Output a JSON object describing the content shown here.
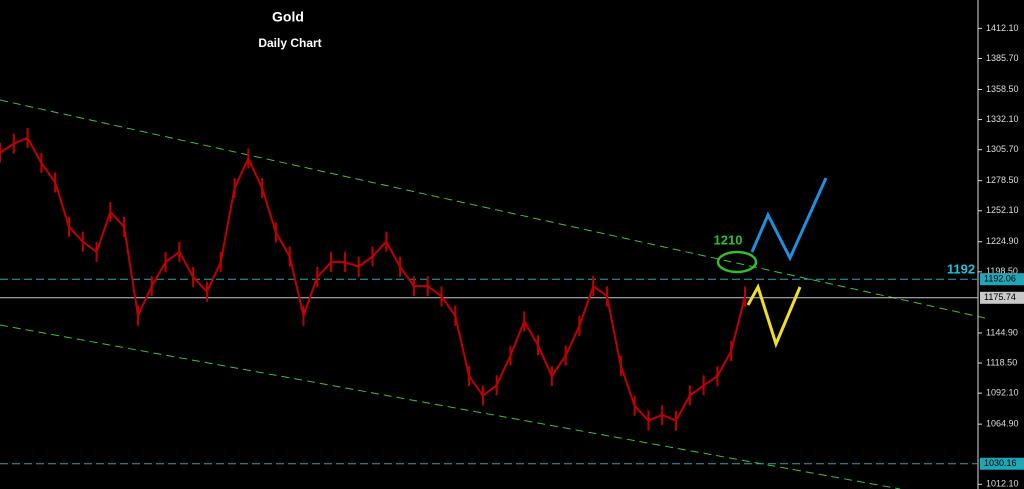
{
  "chart_data": {
    "type": "line",
    "title": "Gold",
    "subtitle": "Daily Chart",
    "series": [
      {
        "name": "Gold",
        "color": "#c00000",
        "values": [
          1303,
          1311,
          1316,
          1294,
          1277,
          1238,
          1225,
          1216,
          1251,
          1238,
          1160,
          1186,
          1207,
          1216,
          1194,
          1181,
          1207,
          1272,
          1298,
          1272,
          1233,
          1212,
          1160,
          1194,
          1207,
          1207,
          1203,
          1212,
          1225,
          1203,
          1186,
          1186,
          1177,
          1160,
          1107,
          1090,
          1099,
          1125,
          1155,
          1134,
          1107,
          1125,
          1151,
          1186,
          1177,
          1116,
          1081,
          1068,
          1073,
          1068,
          1090,
          1099,
          1107,
          1129,
          1177
        ]
      }
    ],
    "ylim": [
      1008,
      1437
    ],
    "yticks": [
      {
        "value": 1412.1,
        "label": "1412.10"
      },
      {
        "value": 1385.7,
        "label": "1385.70"
      },
      {
        "value": 1358.5,
        "label": "1358.50"
      },
      {
        "value": 1332.1,
        "label": "1332.10"
      },
      {
        "value": 1305.7,
        "label": "1305.70"
      },
      {
        "value": 1278.5,
        "label": "1278.50"
      },
      {
        "value": 1252.1,
        "label": "1252.10"
      },
      {
        "value": 1224.9,
        "label": "1224.90"
      },
      {
        "value": 1198.5,
        "label": "1198.50"
      },
      {
        "value": 1144.9,
        "label": "1144.90"
      },
      {
        "value": 1118.5,
        "label": "1118.50"
      },
      {
        "value": 1092.1,
        "label": "1092.10"
      },
      {
        "value": 1064.9,
        "label": "1064.90"
      },
      {
        "value": 1012.1,
        "label": "1012.10"
      }
    ],
    "levels": [
      {
        "value": 1192.06,
        "color": "#1fa7b8"
      },
      {
        "value": 1175.74,
        "color": "#c8c8c8"
      },
      {
        "value": 1030.16,
        "color": "#1fa7b8"
      }
    ],
    "annotations": [
      {
        "text": "1210",
        "color": "#2fbf2f"
      },
      {
        "text": "1192",
        "color": "#1fc3d6"
      }
    ]
  }
}
